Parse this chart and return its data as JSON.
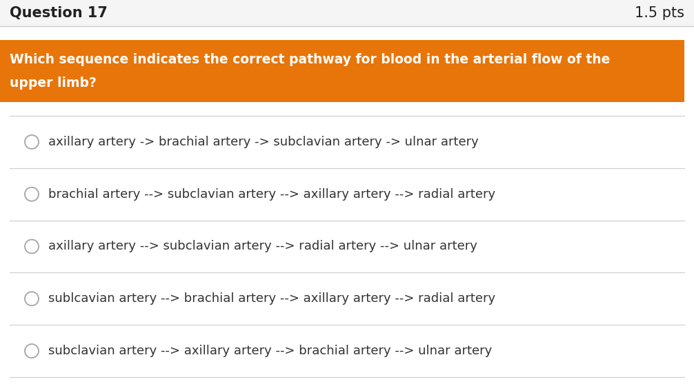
{
  "title_left": "Question 17",
  "title_right": "1.5 pts",
  "title_fontsize": 15,
  "title_color": "#222222",
  "question_text_line1": "Which sequence indicates the correct pathway for blood in the arterial flow of the",
  "question_text_line2": "upper limb?",
  "question_bg_color": "#E8750A",
  "question_text_color": "#FFFFFF",
  "question_fontsize": 13.5,
  "options": [
    "axillary artery -> brachial artery -> subclavian artery -> ulnar artery",
    "brachial artery --> subclavian artery --> axillary artery --> radial artery",
    "axillary artery --> subclavian artery --> radial artery --> ulnar artery",
    "sublcavian artery --> brachial artery --> axillary artery --> radial artery",
    "subclavian artery --> axillary artery --> brachial artery --> ulnar artery"
  ],
  "option_fontsize": 13,
  "option_text_color": "#333333",
  "bg_color": "#FFFFFF",
  "outer_bg_color": "#EFEFEF",
  "divider_color": "#D0D0D0",
  "circle_edge_color": "#AAAAAA",
  "header_divider_color": "#CCCCCC",
  "header_bg_color": "#F5F5F5",
  "fig_width": 10.06,
  "fig_height": 5.57,
  "dpi": 100
}
